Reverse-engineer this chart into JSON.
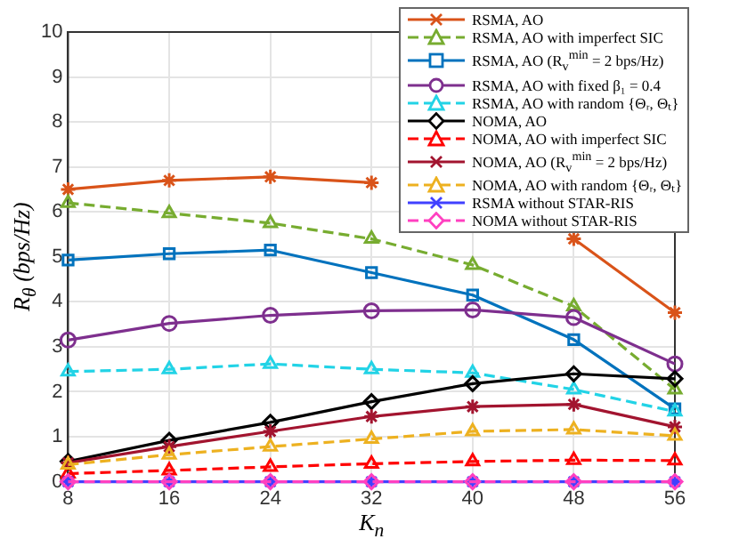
{
  "chart_data": {
    "type": "line",
    "xlabel": "K$_{n}$",
    "ylabel": "R$_{θ}$ (bps/Hz)",
    "x": [
      8,
      16,
      24,
      32,
      40,
      48,
      56
    ],
    "xlim": [
      8,
      56
    ],
    "xticks": [
      8,
      16,
      24,
      32,
      40,
      48,
      56
    ],
    "ylim": [
      0,
      10
    ],
    "yticks": [
      0,
      1,
      2,
      3,
      4,
      5,
      6,
      7,
      8,
      9,
      10
    ],
    "grid": true,
    "legend": "top right",
    "series": [
      {
        "name": "RSMA, AO",
        "color": "#d95319",
        "marker": "cross",
        "line_style": "solid",
        "values": [
          6.5,
          6.7,
          6.78,
          6.65,
          null,
          5.4,
          3.76
        ]
      },
      {
        "name": "RSMA, AO with imperfect SIC",
        "color": "#77ac30",
        "marker": "triangle",
        "line_style": "dashed",
        "values": [
          6.2,
          5.97,
          5.75,
          5.4,
          4.82,
          3.9,
          2.05
        ]
      },
      {
        "name": "RSMA, AO (R$_{v}$$^{min}$ = 2 bps/Hz)",
        "color": "#0072bd",
        "marker": "square",
        "line_style": "solid",
        "values": [
          4.93,
          5.07,
          5.15,
          4.65,
          4.15,
          3.16,
          1.62
        ]
      },
      {
        "name": "RSMA, AO with fixed β₁ = 0.4",
        "color": "#7e2f8e",
        "marker": "circle",
        "line_style": "solid",
        "values": [
          3.15,
          3.52,
          3.7,
          3.8,
          3.82,
          3.65,
          2.62
        ]
      },
      {
        "name": "RSMA, AO with random {Θᵣ, Θₜ}",
        "color": "#22d3e6",
        "marker": "triangle",
        "line_style": "dashed",
        "values": [
          2.45,
          2.5,
          2.62,
          2.5,
          2.42,
          2.05,
          1.56
        ]
      },
      {
        "name": "NOMA, AO",
        "color": "#000000",
        "marker": "diamond",
        "line_style": "solid",
        "values": [
          0.45,
          0.92,
          1.32,
          1.78,
          2.18,
          2.4,
          2.29
        ]
      },
      {
        "name": "NOMA, AO with imperfect SIC",
        "color": "#ff0000",
        "marker": "triangle",
        "line_style": "dashed",
        "values": [
          0.18,
          0.25,
          0.33,
          0.4,
          0.45,
          0.48,
          0.47
        ]
      },
      {
        "name": "NOMA, AO (R$_{v}$$^{min}$ = 2 bps/Hz)",
        "color": "#a2142f",
        "marker": "cross",
        "line_style": "solid",
        "values": [
          0.42,
          0.78,
          1.12,
          1.45,
          1.67,
          1.72,
          1.22
        ]
      },
      {
        "name": "NOMA, AO with random {Θᵣ, Θₜ}",
        "color": "#edb120",
        "marker": "triangle",
        "line_style": "dashed",
        "values": [
          0.38,
          0.6,
          0.78,
          0.95,
          1.12,
          1.16,
          1.02
        ]
      },
      {
        "name": "RSMA without STAR-RIS",
        "color": "#4040ff",
        "marker": "cross",
        "line_style": "solid",
        "values": [
          0,
          0,
          0,
          0,
          0,
          0,
          0
        ]
      },
      {
        "name": "NOMA without STAR-RIS",
        "color": "#ff40c0",
        "marker": "diamond",
        "line_style": "dashed",
        "values": [
          0,
          0,
          0,
          0,
          0,
          0,
          0
        ]
      }
    ]
  }
}
